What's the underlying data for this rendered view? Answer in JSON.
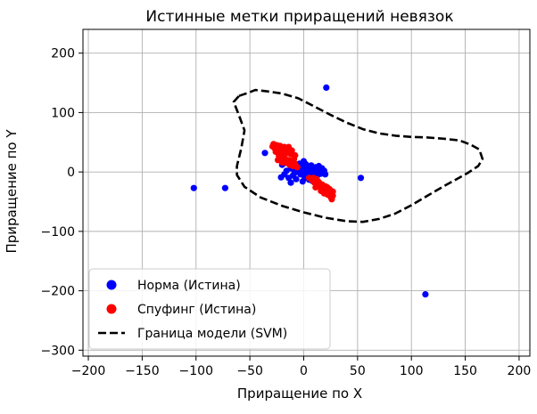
{
  "chart_data": {
    "type": "scatter",
    "title": "Истинные метки приращений невязок",
    "xlabel": "Приращение по X",
    "ylabel": "Приращение по Y",
    "xlim": [
      -205,
      210
    ],
    "ylim": [
      -310,
      240
    ],
    "xticks": [
      -200,
      -150,
      -100,
      -50,
      0,
      50,
      100,
      150,
      200
    ],
    "yticks": [
      -300,
      -200,
      -100,
      0,
      100,
      200
    ],
    "grid": true,
    "legend_position": "lower-left",
    "series": [
      {
        "name": "Норма (Истина)",
        "kind": "points",
        "color": "#0000ff",
        "points": [
          [
            21,
            142
          ],
          [
            -102,
            -27
          ],
          [
            -73,
            -27
          ],
          [
            53,
            -10
          ],
          [
            113,
            -206
          ],
          [
            -36,
            32
          ],
          [
            -20,
            12
          ],
          [
            -12,
            6
          ],
          [
            -5,
            4
          ],
          [
            0,
            5
          ],
          [
            3,
            2
          ],
          [
            5,
            0
          ],
          [
            8,
            3
          ],
          [
            10,
            -2
          ],
          [
            12,
            4
          ],
          [
            15,
            0
          ],
          [
            -3,
            -4
          ],
          [
            0,
            -2
          ],
          [
            2,
            -6
          ],
          [
            6,
            -5
          ],
          [
            9,
            -8
          ],
          [
            13,
            -5
          ],
          [
            16,
            -3
          ],
          [
            -8,
            -1
          ],
          [
            -10,
            -6
          ],
          [
            -6,
            8
          ],
          [
            -2,
            10
          ],
          [
            4,
            9
          ],
          [
            7,
            11
          ],
          [
            11,
            8
          ],
          [
            14,
            10
          ],
          [
            2,
            13
          ],
          [
            -4,
            14
          ],
          [
            -14,
            -10
          ],
          [
            -12,
            -18
          ],
          [
            -7,
            -12
          ],
          [
            1,
            -10
          ],
          [
            5,
            -13
          ],
          [
            8,
            -15
          ],
          [
            -16,
            2
          ],
          [
            -18,
            -4
          ],
          [
            17,
            6
          ],
          [
            19,
            2
          ],
          [
            20,
            -4
          ],
          [
            -1,
            1
          ],
          [
            3,
            -1
          ],
          [
            6,
            4
          ],
          [
            9,
            1
          ],
          [
            -9,
            3
          ],
          [
            -11,
            10
          ],
          [
            0,
            18
          ],
          [
            -1,
            -16
          ],
          [
            12,
            -12
          ],
          [
            -21,
            -9
          ]
        ]
      },
      {
        "name": "Спуфинг (Истина)",
        "kind": "points",
        "color": "#ff0000",
        "points": [
          [
            -28,
            47
          ],
          [
            -25,
            45
          ],
          [
            -22,
            44
          ],
          [
            -27,
            40
          ],
          [
            -24,
            38
          ],
          [
            -20,
            40
          ],
          [
            -17,
            37
          ],
          [
            -26,
            34
          ],
          [
            -22,
            32
          ],
          [
            -19,
            30
          ],
          [
            -15,
            32
          ],
          [
            -12,
            30
          ],
          [
            -20,
            24
          ],
          [
            -17,
            22
          ],
          [
            -14,
            20
          ],
          [
            -11,
            18
          ],
          [
            -9,
            22
          ],
          [
            -16,
            15
          ],
          [
            -13,
            12
          ],
          [
            -10,
            10
          ],
          [
            -8,
            14
          ],
          [
            -6,
            8
          ],
          [
            -20,
            16
          ],
          [
            -23,
            27
          ],
          [
            -24,
            20
          ],
          [
            -29,
            43
          ],
          [
            -18,
            42
          ],
          [
            -14,
            42
          ],
          [
            -11,
            36
          ],
          [
            -8,
            28
          ],
          [
            5,
            -10
          ],
          [
            8,
            -14
          ],
          [
            10,
            -18
          ],
          [
            13,
            -20
          ],
          [
            15,
            -25
          ],
          [
            18,
            -28
          ],
          [
            20,
            -30
          ],
          [
            23,
            -33
          ],
          [
            25,
            -36
          ],
          [
            27,
            -40
          ],
          [
            17,
            -21
          ],
          [
            20,
            -24
          ],
          [
            22,
            -26
          ],
          [
            24,
            -29
          ],
          [
            27,
            -33
          ],
          [
            19,
            -36
          ],
          [
            22,
            -38
          ],
          [
            25,
            -42
          ],
          [
            14,
            -17
          ],
          [
            12,
            -12
          ],
          [
            9,
            -10
          ],
          [
            26,
            -46
          ],
          [
            11,
            -26
          ],
          [
            16,
            -32
          ]
        ]
      },
      {
        "name": "Граница модели (SVM)",
        "kind": "line",
        "style": "dashed",
        "color": "#000000",
        "points": [
          [
            -60,
            128
          ],
          [
            -52,
            133
          ],
          [
            -45,
            138
          ],
          [
            -35,
            136
          ],
          [
            -20,
            132
          ],
          [
            -5,
            124
          ],
          [
            10,
            110
          ],
          [
            25,
            96
          ],
          [
            40,
            83
          ],
          [
            55,
            72
          ],
          [
            70,
            65
          ],
          [
            85,
            61
          ],
          [
            100,
            59
          ],
          [
            115,
            58
          ],
          [
            130,
            56
          ],
          [
            145,
            53
          ],
          [
            155,
            46
          ],
          [
            163,
            38
          ],
          [
            166,
            22
          ],
          [
            162,
            10
          ],
          [
            152,
            -2
          ],
          [
            142,
            -12
          ],
          [
            130,
            -24
          ],
          [
            115,
            -40
          ],
          [
            100,
            -56
          ],
          [
            85,
            -70
          ],
          [
            70,
            -79
          ],
          [
            55,
            -84
          ],
          [
            40,
            -83
          ],
          [
            20,
            -77
          ],
          [
            0,
            -68
          ],
          [
            -20,
            -57
          ],
          [
            -40,
            -43
          ],
          [
            -55,
            -25
          ],
          [
            -62,
            -5
          ],
          [
            -62,
            10
          ],
          [
            -58,
            40
          ],
          [
            -55,
            70
          ],
          [
            -60,
            95
          ],
          [
            -65,
            118
          ],
          [
            -60,
            128
          ]
        ]
      }
    ]
  }
}
